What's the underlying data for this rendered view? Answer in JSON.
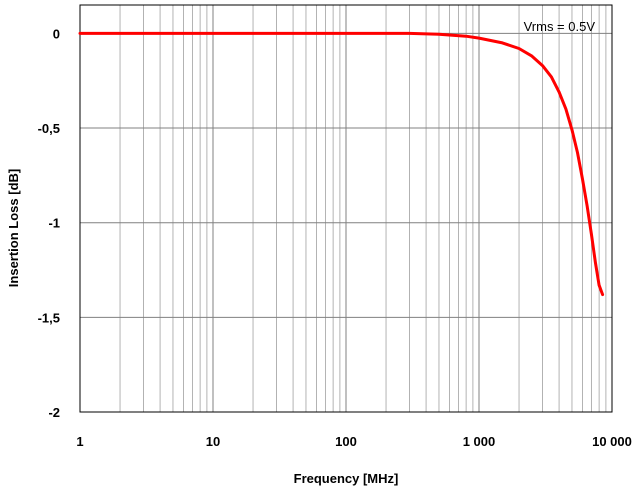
{
  "chart_data": {
    "type": "line",
    "xlabel": "Frequency [MHz]",
    "ylabel": "Insertion Loss [dB]",
    "x_scale": "log",
    "xlim": [
      1,
      10000
    ],
    "ylim": [
      -2,
      0.15
    ],
    "grid": true,
    "x_tick_labels": [
      "1",
      "10",
      "100",
      "1 000",
      "10 000"
    ],
    "x_ticks": [
      1,
      10,
      100,
      1000,
      10000
    ],
    "y_tick_labels": [
      "0",
      "-0,5",
      "-1",
      "-1,5",
      "-2"
    ],
    "y_ticks": [
      0,
      -0.5,
      -1,
      -1.5,
      -2
    ],
    "annotation": "Vrms = 0.5V",
    "series": [
      {
        "color": "#ff0000",
        "x": [
          1,
          10,
          100,
          300,
          500,
          800,
          1000,
          1500,
          2000,
          2500,
          3000,
          3500,
          4000,
          4500,
          5000,
          5500,
          6000,
          6500,
          7000,
          7500,
          8000,
          8500
        ],
        "y": [
          0,
          0,
          0,
          0,
          -0.005,
          -0.015,
          -0.025,
          -0.05,
          -0.08,
          -0.12,
          -0.17,
          -0.23,
          -0.31,
          -0.4,
          -0.51,
          -0.63,
          -0.77,
          -0.91,
          -1.06,
          -1.21,
          -1.33,
          -1.38
        ]
      }
    ]
  }
}
